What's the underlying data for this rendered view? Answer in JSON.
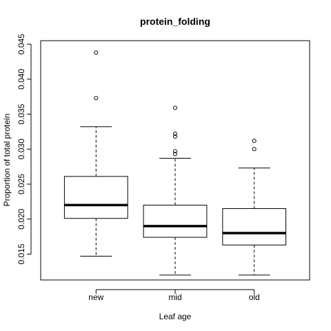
{
  "chart_data": {
    "type": "box",
    "title": "protein_folding",
    "xlabel": "Leaf age",
    "ylabel": "Proportion of total protein",
    "categories": [
      "new",
      "mid",
      "old"
    ],
    "ylim": [
      0.0113,
      0.0455
    ],
    "y_ticks": [
      0.015,
      0.02,
      0.025,
      0.03,
      0.035,
      0.04,
      0.045
    ],
    "y_tick_labels": [
      "0.015",
      "0.020",
      "0.025",
      "0.030",
      "0.035",
      "0.040",
      "0.045"
    ],
    "grid": false,
    "boxes": [
      {
        "category": "new",
        "whisker_low": 0.0147,
        "q1": 0.0201,
        "median": 0.022,
        "q3": 0.0261,
        "whisker_high": 0.0332,
        "outliers": [
          0.0373,
          0.0438
        ]
      },
      {
        "category": "mid",
        "whisker_low": 0.012,
        "q1": 0.0174,
        "median": 0.019,
        "q3": 0.022,
        "whisker_high": 0.0287,
        "outliers": [
          0.0293,
          0.0297,
          0.0318,
          0.0322,
          0.0359
        ]
      },
      {
        "category": "old",
        "whisker_low": 0.012,
        "q1": 0.0163,
        "median": 0.018,
        "q3": 0.0215,
        "whisker_high": 0.0273,
        "outliers": [
          0.03,
          0.0312
        ]
      }
    ]
  }
}
